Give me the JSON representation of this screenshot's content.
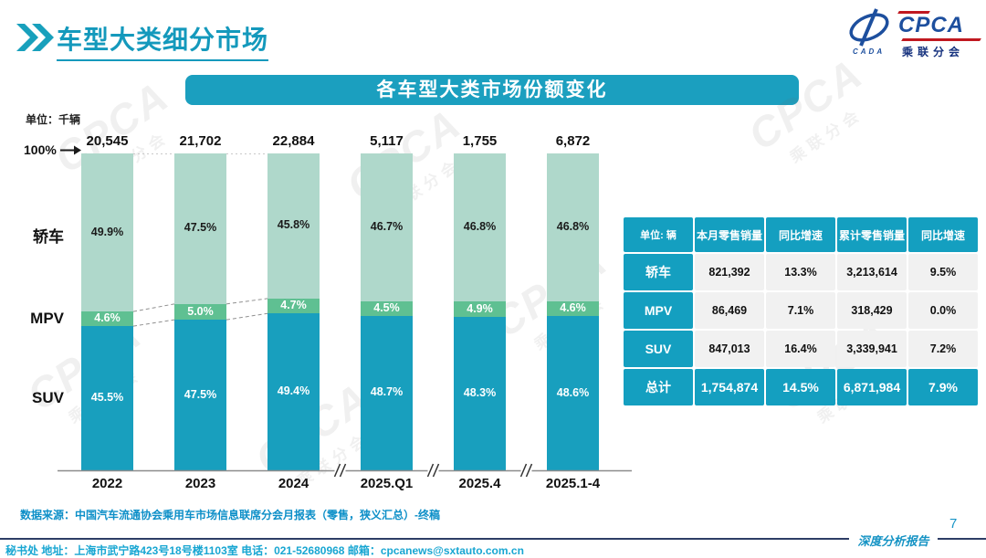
{
  "page": {
    "title": "车型大类细分市场",
    "page_number": "7",
    "report_label": "深度分析报告"
  },
  "logo": {
    "cpca": "CPCA",
    "sub": "乘联分会",
    "cada": "CADA"
  },
  "banner": {
    "title": "各车型大类市场份额变化"
  },
  "chart_data": {
    "type": "bar",
    "stacked": true,
    "percent_stack": true,
    "unit_label": "单位：千辆",
    "axis_top_label": "100%",
    "categories": [
      "2022",
      "2023",
      "2024",
      "2025.Q1",
      "2025.4",
      "2025.1-4"
    ],
    "totals": [
      "20,545",
      "21,702",
      "22,884",
      "5,117",
      "1,755",
      "6,872"
    ],
    "series": [
      {
        "name": "轿车",
        "color": "#afd8cb",
        "label_color": "#1a1a1a",
        "values": [
          49.9,
          47.5,
          45.8,
          46.7,
          46.8,
          46.8
        ]
      },
      {
        "name": "MPV",
        "color": "#5fc092",
        "label_color": "#ffffff",
        "values": [
          4.6,
          5.0,
          4.7,
          4.5,
          4.9,
          4.6
        ]
      },
      {
        "name": "SUV",
        "color": "#189fbe",
        "label_color": "#ffffff",
        "values": [
          45.5,
          47.5,
          49.4,
          48.7,
          48.3,
          48.6
        ]
      }
    ],
    "value_suffix": "%",
    "ylim": [
      0,
      100
    ],
    "axis_break_before": [
      3,
      4,
      5
    ],
    "connector_pairs": [
      [
        0,
        1
      ],
      [
        1,
        2
      ]
    ],
    "legend_position": "left-of-bars",
    "grid": false
  },
  "table": {
    "unit_header": "单位: 辆",
    "columns": [
      "本月零售销量",
      "同比增速",
      "累计零售销量",
      "同比增速"
    ],
    "rows": [
      {
        "label": "轿车",
        "cells": [
          "821,392",
          "13.3%",
          "3,213,614",
          "9.5%"
        ],
        "highlight": false
      },
      {
        "label": "MPV",
        "cells": [
          "86,469",
          "7.1%",
          "318,429",
          "0.0%"
        ],
        "highlight": false
      },
      {
        "label": "SUV",
        "cells": [
          "847,013",
          "16.4%",
          "3,339,941",
          "7.2%"
        ],
        "highlight": false
      },
      {
        "label": "总计",
        "cells": [
          "1,754,874",
          "14.5%",
          "6,871,984",
          "7.9%"
        ],
        "highlight": true
      }
    ]
  },
  "footer": {
    "datasource": "数据来源：中国汽车流通协会乘用车市场信息联席分会月报表（零售，狭义汇总）-终稿",
    "contact": "秘书处  地址：上海市武宁路423号18号楼1103室 电话：021-52680968  邮箱：cpcanews@sxtauto.com.cn"
  },
  "watermark": {
    "text": "CPCA",
    "subtext": "乘联分会"
  },
  "colors": {
    "accent_teal": "#189fbe",
    "mpv_green": "#5fc092",
    "sedan_light_green": "#afd8cb",
    "title_teal": "#1499bc",
    "footer_blue": "#0d8fc8",
    "contact_cyan": "#18a6d2",
    "logo_blue": "#1d4f9e",
    "logo_red": "#c01820"
  }
}
